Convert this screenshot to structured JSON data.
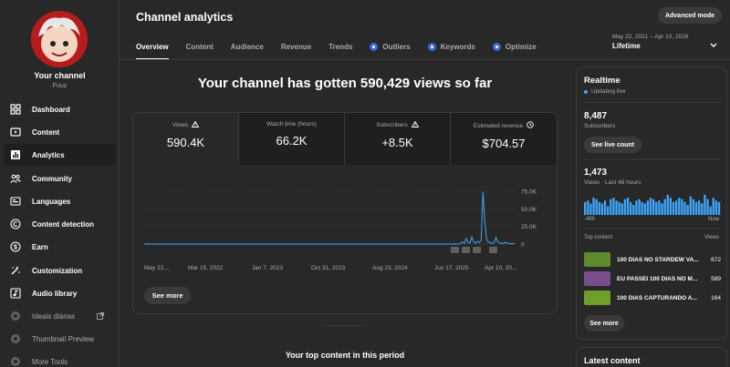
{
  "sidebar": {
    "channel_name": "Your channel",
    "channel_handle": "Fuuz",
    "items": [
      {
        "label": "Dashboard",
        "icon": "dashboard-icon"
      },
      {
        "label": "Content",
        "icon": "content-icon"
      },
      {
        "label": "Analytics",
        "icon": "analytics-icon",
        "active": true
      },
      {
        "label": "Community",
        "icon": "community-icon"
      },
      {
        "label": "Languages",
        "icon": "languages-icon"
      },
      {
        "label": "Content detection",
        "icon": "copyright-icon"
      },
      {
        "label": "Earn",
        "icon": "earn-icon"
      },
      {
        "label": "Customization",
        "icon": "customization-icon"
      },
      {
        "label": "Audio library",
        "icon": "audio-library-icon"
      },
      {
        "label": "Ideais diárias",
        "icon": "extension-icon"
      },
      {
        "label": "Thumbnail Preview",
        "icon": "extension-icon"
      },
      {
        "label": "More Tools",
        "icon": "extension-icon"
      }
    ]
  },
  "header": {
    "title": "Channel analytics",
    "advanced_mode": "Advanced mode",
    "tabs": [
      {
        "label": "Overview",
        "active": true
      },
      {
        "label": "Content"
      },
      {
        "label": "Audience"
      },
      {
        "label": "Revenue"
      },
      {
        "label": "Trends"
      },
      {
        "label": "Outliers",
        "icon": true
      },
      {
        "label": "Keywords",
        "icon": true
      },
      {
        "label": "Optimize",
        "icon": true
      }
    ],
    "date_range": "May 22, 2021 – Apr 10, 2026",
    "date_preset": "Lifetime"
  },
  "main": {
    "headline": "Your channel has gotten 590,429 views so far",
    "metrics": [
      {
        "label": "Views",
        "value": "590.4K",
        "icon": "warning-icon"
      },
      {
        "label": "Watch time (hours)",
        "value": "66.2K",
        "icon": ""
      },
      {
        "label": "Subscribers",
        "value": "+8.5K",
        "icon": "warning-icon"
      },
      {
        "label": "Estimated revenue",
        "value": "$704.57",
        "icon": "clock-icon"
      }
    ],
    "see_more": "See more",
    "top_content_title": "Your top content in this period"
  },
  "chart_data": {
    "type": "line",
    "series": [
      {
        "values": [
          0,
          0,
          0,
          0,
          0,
          0,
          0,
          0,
          0,
          0,
          0,
          0,
          0,
          0,
          0,
          0,
          0,
          0,
          0,
          0,
          0,
          0,
          0,
          0,
          0,
          0,
          0,
          0,
          0,
          0,
          0,
          0,
          0,
          0,
          0,
          0,
          0,
          0,
          0,
          0,
          0,
          0,
          0,
          0,
          0,
          0,
          0,
          0,
          0,
          0,
          0,
          0,
          0,
          0,
          0,
          0,
          0,
          0,
          0,
          0,
          0,
          0,
          0,
          0,
          0,
          0,
          0,
          0,
          0,
          0,
          0,
          0,
          0,
          0,
          0,
          0,
          0,
          0,
          0,
          0,
          0,
          0,
          0,
          0,
          0,
          0,
          0,
          0,
          0,
          0,
          0,
          0,
          0,
          0,
          0,
          0,
          0,
          0,
          0,
          0,
          0,
          0,
          0,
          0,
          0,
          0,
          0,
          0,
          0,
          0,
          0,
          0,
          0,
          0,
          0,
          0,
          0,
          0,
          0,
          0,
          0,
          0,
          0,
          0,
          0,
          0,
          0,
          0,
          0,
          0,
          0,
          0,
          0,
          0,
          0,
          0,
          0,
          0,
          0,
          0,
          0,
          0,
          0,
          0,
          0,
          0,
          0,
          0,
          0,
          0,
          0,
          0,
          0,
          0,
          0,
          0,
          0,
          0,
          0,
          0,
          0,
          0,
          0,
          0,
          0,
          0,
          0,
          0,
          0,
          0,
          1500,
          3000,
          1200,
          8000,
          2500,
          1500,
          10000,
          3000,
          1200,
          4000,
          2000,
          6000,
          74000,
          30000,
          6000,
          3000,
          1500,
          1000,
          2500,
          9000,
          3000,
          1500,
          1000,
          1000,
          2500,
          1500,
          800,
          600,
          500,
          400
        ]
      }
    ],
    "x_ticks": [
      "May 22,...",
      "Mar 15, 2022",
      "Jan 7, 2023",
      "Oct 31, 2023",
      "Aug 23, 2024",
      "Jun 17, 2025",
      "Apr 10, 20..."
    ],
    "y_ticks": [
      "75.0K",
      "50.0K",
      "25.0K",
      "0"
    ],
    "ylim": [
      0,
      75000
    ],
    "line_color": "#3ea6ff",
    "grid": true
  },
  "realtime": {
    "title": "Realtime",
    "status": "Updating live",
    "subscribers_value": "8,487",
    "subscribers_label": "Subscribers",
    "live_count_button": "See live count",
    "views_value": "1,473",
    "views_label": "Views · Last 48 hours",
    "bars": [
      9,
      10,
      8,
      12,
      11,
      9,
      8,
      10,
      6,
      11,
      12,
      10,
      9,
      8,
      11,
      12,
      9,
      7,
      10,
      11,
      9,
      8,
      10,
      12,
      11,
      9,
      10,
      8,
      11,
      14,
      12,
      9,
      10,
      12,
      11,
      9,
      7,
      13,
      11,
      9,
      10,
      8,
      14,
      11,
      6,
      12,
      10,
      9
    ],
    "axis_left": "-48h",
    "axis_right": "Now",
    "top_content_label": "Top content",
    "top_views_label": "Views",
    "top_items": [
      {
        "title": "100 DIAS NO STARDEW VA...",
        "views": "672",
        "thumb": "#5f8a2c"
      },
      {
        "title": "EU PASSEI 100 DIAS NO M...",
        "views": "589",
        "thumb": "#7a4d8e"
      },
      {
        "title": "100 DIAS CAPTURANDO A...",
        "views": "164",
        "thumb": "#6f9e2a"
      }
    ],
    "see_more": "See more"
  },
  "latest": {
    "title": "Latest content"
  },
  "colors": {
    "accent": "#3ea6ff",
    "background": "#282828",
    "panel": "#1f1f1f"
  }
}
